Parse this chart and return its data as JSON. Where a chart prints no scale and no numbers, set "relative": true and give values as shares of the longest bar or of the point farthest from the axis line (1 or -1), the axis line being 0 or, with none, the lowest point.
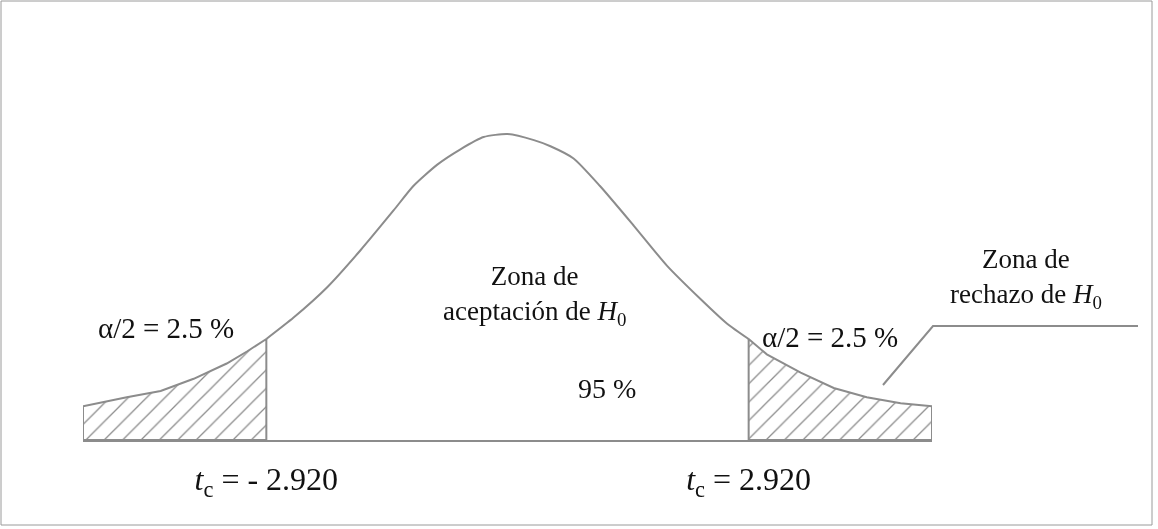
{
  "chart_data": {
    "type": "line",
    "relative": true,
    "xlim": [
      -5.14,
      5.14
    ],
    "xticks": [
      {
        "value": -2.92,
        "label": "t$_{c}$ = - 2.920"
      },
      {
        "value": 2.92,
        "label": "t$_{c}$ = 2.920"
      }
    ],
    "tick_labels": "x",
    "series": [
      {
        "type": "area",
        "color": "#8c8c8c",
        "x": [
          -5.14,
          -4.61,
          -4.2,
          -3.8,
          -3.4,
          -3.15,
          -2.92
        ],
        "values": [
          0.11,
          0.14,
          0.16,
          0.2,
          0.25,
          0.29,
          0.33
        ]
      },
      {
        "color": "#8c8c8c",
        "x": [
          -2.92,
          -2.59,
          -2.18,
          -1.78,
          -1.38,
          -1.14,
          -0.85,
          -0.57,
          -0.29,
          0,
          0.32,
          0.52,
          0.8,
          1.12,
          1.53,
          1.93,
          2.34,
          2.66,
          2.92
        ],
        "values": [
          0.33,
          0.4,
          0.5,
          0.62,
          0.75,
          0.83,
          0.9,
          0.95,
          0.99,
          1,
          0.98,
          0.96,
          0.92,
          0.83,
          0.7,
          0.57,
          0.46,
          0.38,
          0.33
        ]
      },
      {
        "type": "area",
        "color": "#8c8c8c",
        "x": [
          2.92,
          3.14,
          3.55,
          3.95,
          4.35,
          4.76,
          5.14
        ],
        "values": [
          0.33,
          0.28,
          0.22,
          0.17,
          0.14,
          0.12,
          0.11
        ]
      }
    ],
    "annotations": [
      "Zona de\naceptación de H$_{0}$",
      "α/2 = 2.5 %",
      "95 %",
      "α/2 = 2.5 %",
      "Zona de\nrechazo de H$_{0}$"
    ]
  }
}
